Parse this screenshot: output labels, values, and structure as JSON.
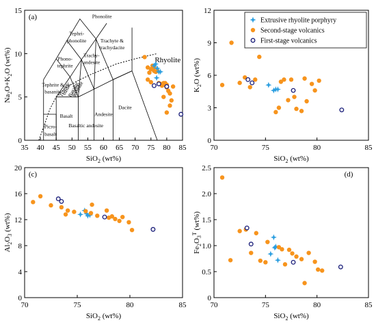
{
  "chart_data": [
    {
      "id": "a",
      "type": "scatter",
      "panel_label": "(a)",
      "xlabel": "SiO$_2$ (wt%)",
      "ylabel": "Na$_2$O+K$_2$O (wt%)",
      "xlim": [
        35,
        85
      ],
      "ylim": [
        0,
        15
      ],
      "xticks": [
        35,
        40,
        45,
        50,
        55,
        60,
        65,
        70,
        75,
        80,
        85
      ],
      "yticks": [
        0,
        5,
        10,
        15
      ],
      "field_labels": [
        "Phonolite",
        "Tephri-",
        "phonolite",
        "Trachyte &",
        "trachydacite",
        "Phono-",
        "tephrite",
        "Trachy-",
        "andesite",
        "Tephrite &",
        "basanite",
        "Basaltic",
        "trachy-",
        "andesite",
        "Trachy-",
        "basalt",
        "Picro-",
        "basalt",
        "Basalt",
        "Basaltic andesite",
        "Andesite",
        "Dacite",
        "Rhyolite"
      ],
      "series": [
        {
          "name": "Second-stage volcanics",
          "x": [
            73,
            74,
            74.5,
            75,
            75.5,
            76,
            76.5,
            77,
            77.5,
            78,
            78.5,
            79,
            79.5,
            80,
            80.5,
            81,
            81.5,
            74,
            75,
            76,
            78,
            79,
            80,
            81,
            82,
            80,
            79
          ],
          "y": [
            9.6,
            8.4,
            7.8,
            8.2,
            8.6,
            8.4,
            7.9,
            8.0,
            6.6,
            6.5,
            6.3,
            6.4,
            6.6,
            6.1,
            5.7,
            5.4,
            4.6,
            7.0,
            6.7,
            8.0,
            6.5,
            6.6,
            3.2,
            4.0,
            6.2,
            6.4,
            5.0
          ]
        },
        {
          "name": "Extrusive rhyolite porphyry",
          "x": [
            76,
            76.5,
            77,
            77.5,
            78,
            76.8
          ],
          "y": [
            8.6,
            8.8,
            8.3,
            7.9,
            7.9,
            7.2
          ]
        },
        {
          "name": "First-stage volcanics",
          "x": [
            76,
            77.5,
            80,
            84.5
          ],
          "y": [
            6.3,
            6.5,
            6.2,
            3.0
          ]
        }
      ]
    },
    {
      "id": "b",
      "type": "scatter",
      "panel_label": "(b)",
      "xlabel": "SiO$_2$ (wt%)",
      "ylabel": "K$_2$O (wt%)",
      "xlim": [
        70,
        85
      ],
      "ylim": [
        0,
        12
      ],
      "xticks": [
        70,
        75,
        80,
        85
      ],
      "yticks": [
        0,
        3,
        6,
        9,
        12
      ],
      "legend": {
        "placement": "top-right",
        "entries": [
          "Extrusive rhyolite porphyry",
          "Second-stage volcanics",
          "First-stage volcanics"
        ]
      },
      "series": [
        {
          "name": "Extrusive rhyolite porphyry",
          "x": [
            75.3,
            75.8,
            76.0,
            76.2
          ],
          "y": [
            5.1,
            4.6,
            4.7,
            4.7
          ]
        },
        {
          "name": "Second-stage volcanics",
          "x": [
            70.8,
            71.7,
            72.5,
            73.0,
            73.5,
            74.0,
            74.4,
            76.0,
            76.3,
            76.8,
            77.2,
            77.8,
            78.0,
            78.5,
            78.8,
            79.0,
            79.5,
            79.8,
            80.2,
            76.5,
            77.5
          ],
          "y": [
            5.1,
            9.0,
            5.3,
            5.8,
            4.9,
            5.6,
            7.7,
            2.6,
            3.0,
            5.6,
            3.7,
            4.0,
            2.9,
            2.7,
            5.7,
            3.6,
            5.2,
            4.6,
            5.5,
            5.4,
            5.6
          ]
        },
        {
          "name": "First-stage volcanics",
          "x": [
            73.3,
            73.7,
            77.7,
            82.4
          ],
          "y": [
            5.6,
            5.3,
            4.6,
            2.8
          ]
        }
      ]
    },
    {
      "id": "c",
      "type": "scatter",
      "panel_label": "(c)",
      "xlabel": "SiO$_2$ (wt%)",
      "ylabel": "Al$_2$O$_3$ (wt%)",
      "xlim": [
        70,
        85
      ],
      "ylim": [
        0,
        20
      ],
      "xticks": [
        70,
        75,
        80,
        85
      ],
      "yticks": [
        0,
        4,
        8,
        12,
        16,
        20
      ],
      "series": [
        {
          "name": "Extrusive rhyolite porphyry",
          "x": [
            75.3,
            75.7,
            76.0,
            76.2,
            75.9
          ],
          "y": [
            12.8,
            13.4,
            12.6,
            12.7,
            12.9
          ]
        },
        {
          "name": "Second-stage volcanics",
          "x": [
            70.8,
            71.5,
            72.5,
            73.5,
            73.9,
            74.1,
            74.7,
            75.8,
            76.4,
            76.9,
            77.8,
            78.0,
            78.6,
            79.0,
            79.3,
            79.9,
            80.2,
            78.3,
            76.3
          ],
          "y": [
            14.7,
            15.6,
            14.2,
            13.9,
            12.8,
            13.4,
            13.2,
            13.3,
            14.3,
            12.6,
            13.4,
            12.3,
            12.1,
            11.8,
            12.4,
            11.6,
            10.4,
            12.5,
            13.0
          ]
        },
        {
          "name": "First-stage volcanics",
          "x": [
            73.2,
            73.5,
            77.6,
            82.2
          ],
          "y": [
            15.2,
            14.8,
            12.4,
            10.5
          ]
        }
      ]
    },
    {
      "id": "d",
      "type": "scatter",
      "panel_label": "(d)",
      "xlabel": "SiO$_2$ (wt%)",
      "ylabel": "Fe$_2$O$_3$$^T$ (wt%)",
      "xlim": [
        70,
        85
      ],
      "ylim": [
        0,
        2.5
      ],
      "xticks": [
        70,
        75,
        80,
        85
      ],
      "yticks": [
        0,
        0.5,
        1.0,
        1.5,
        2.0,
        2.5
      ],
      "ytick_labels": [
        "0",
        "0.5",
        "1.0",
        "1.5",
        "2.0",
        "2.5"
      ],
      "series": [
        {
          "name": "Extrusive rhyolite porphyry",
          "x": [
            75.5,
            75.8,
            76.0,
            76.2,
            75.9
          ],
          "y": [
            0.84,
            1.16,
            0.98,
            0.72,
            0.96
          ]
        },
        {
          "name": "Second-stage volcanics",
          "x": [
            70.8,
            71.6,
            72.5,
            73.1,
            73.6,
            74.1,
            74.5,
            75.0,
            76.3,
            76.9,
            77.3,
            77.6,
            78.0,
            78.5,
            78.8,
            79.2,
            79.8,
            80.1,
            80.5,
            76.6,
            75.2
          ],
          "y": [
            2.31,
            0.72,
            1.28,
            1.31,
            0.86,
            1.24,
            0.71,
            0.68,
            0.97,
            0.64,
            0.92,
            0.85,
            0.79,
            0.74,
            0.28,
            0.86,
            0.69,
            0.54,
            0.52,
            0.93,
            1.07
          ]
        },
        {
          "name": "First-stage volcanics",
          "x": [
            73.2,
            73.6,
            77.7,
            82.3
          ],
          "y": [
            1.34,
            1.03,
            0.68,
            0.59
          ]
        }
      ]
    }
  ],
  "colors": {
    "Extrusive rhyolite porphyry": "#2d9fe0",
    "Second-stage volcanics": "#f7941d",
    "First-stage volcanics": "#1b1f7a",
    "axes": "#000000"
  }
}
